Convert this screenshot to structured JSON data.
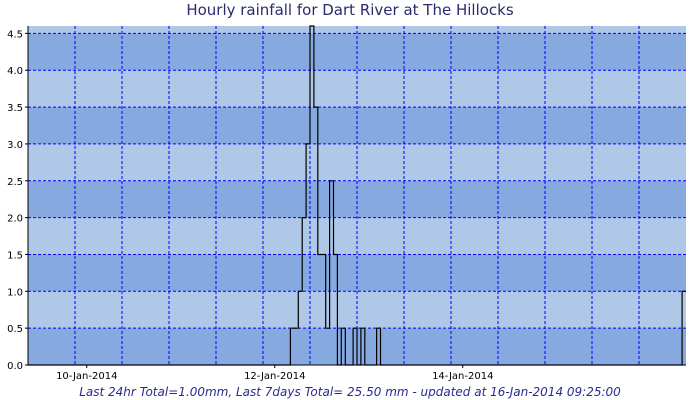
{
  "chart_data": {
    "type": "line",
    "title": "Hourly rainfall for Dart River at The Hillocks",
    "xlabel": "",
    "ylabel": "",
    "ylim": [
      0,
      4.6
    ],
    "y_ticks": [
      "0.0",
      "0.5",
      "1.0",
      "1.5",
      "2.0",
      "2.5",
      "3.0",
      "3.5",
      "4.0",
      "4.5"
    ],
    "x_tick_labels": [
      {
        "date": "2014-01-10",
        "label": "10-Jan-2014"
      },
      {
        "date": "2014-01-12",
        "label": "12-Jan-2014"
      },
      {
        "date": "2014-01-14",
        "label": "14-Jan-2014"
      }
    ],
    "x_range": [
      "2014-01-09 09:00",
      "2014-01-16 09:00"
    ],
    "grid": true,
    "step_style": "step",
    "series": [
      {
        "points": [
          [
            "2014-01-09 09:00",
            0.0
          ],
          [
            "2014-01-12 03:00",
            0.0
          ],
          [
            "2014-01-12 04:00",
            0.5
          ],
          [
            "2014-01-12 05:00",
            0.5
          ],
          [
            "2014-01-12 06:00",
            1.0
          ],
          [
            "2014-01-12 07:00",
            2.0
          ],
          [
            "2014-01-12 08:00",
            3.0
          ],
          [
            "2014-01-12 09:00",
            4.6
          ],
          [
            "2014-01-12 10:00",
            3.5
          ],
          [
            "2014-01-12 11:00",
            1.5
          ],
          [
            "2014-01-12 12:00",
            1.5
          ],
          [
            "2014-01-12 13:00",
            0.5
          ],
          [
            "2014-01-12 14:00",
            2.5
          ],
          [
            "2014-01-12 15:00",
            1.5
          ],
          [
            "2014-01-12 16:00",
            0.0
          ],
          [
            "2014-01-12 17:00",
            0.5
          ],
          [
            "2014-01-12 18:00",
            0.0
          ],
          [
            "2014-01-12 20:00",
            0.5
          ],
          [
            "2014-01-12 21:00",
            0.0
          ],
          [
            "2014-01-12 22:00",
            0.5
          ],
          [
            "2014-01-12 23:00",
            0.0
          ],
          [
            "2014-01-13 02:00",
            0.5
          ],
          [
            "2014-01-13 03:00",
            0.0
          ],
          [
            "2014-01-16 08:00",
            1.0
          ],
          [
            "2014-01-16 09:00",
            1.0
          ]
        ]
      }
    ],
    "footer": "Last 24hr Total=1.00mm, Last 7days Total= 25.50 mm - updated at 16-Jan-2014 09:25:00",
    "colors": {
      "band_dark": "#86aae0",
      "band_light": "#b0c8e8",
      "grid": "#0000ff",
      "line": "#000000",
      "axis": "#000000",
      "title": "#2b2b6b",
      "footer": "#2b2b8f"
    }
  }
}
